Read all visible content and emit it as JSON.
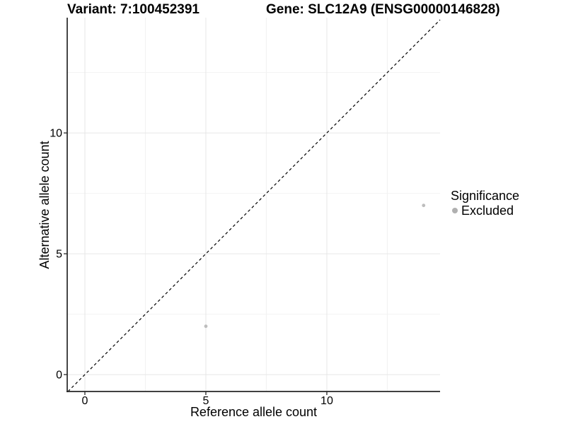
{
  "titles": {
    "left": "Variant: 7:100452391",
    "right": "Gene: SLC12A9 (ENSG00000146828)"
  },
  "chart_data": {
    "type": "scatter",
    "xlabel": "Reference allele count",
    "ylabel": "Alternative allele count",
    "xlim": [
      -0.73,
      14.68
    ],
    "ylim": [
      -0.7,
      14.77
    ],
    "x_ticks": [
      0,
      5,
      10
    ],
    "y_ticks": [
      0,
      5,
      10
    ],
    "x_minor_ticks": [
      2.5,
      7.5,
      12.5
    ],
    "y_minor_ticks": [
      2.5,
      7.5,
      12.5
    ],
    "grid": true,
    "series": [
      {
        "name": "Excluded",
        "color": "#bdbdbd",
        "points": [
          {
            "x": 5,
            "y": 2
          },
          {
            "x": 14,
            "y": 7
          }
        ]
      }
    ],
    "reference_line": {
      "type": "identity-diagonal",
      "style": "dashed",
      "color": "#000000"
    },
    "legend": {
      "title": "Significance",
      "position": "right",
      "items": [
        {
          "label": "Excluded",
          "color": "#b0b0b0"
        }
      ]
    }
  },
  "colors": {
    "background": "#ffffff",
    "grid_major": "#e6e6e6",
    "grid_minor": "#f2f2f2",
    "axis_line": "#262626",
    "tick_text": "#000000"
  }
}
